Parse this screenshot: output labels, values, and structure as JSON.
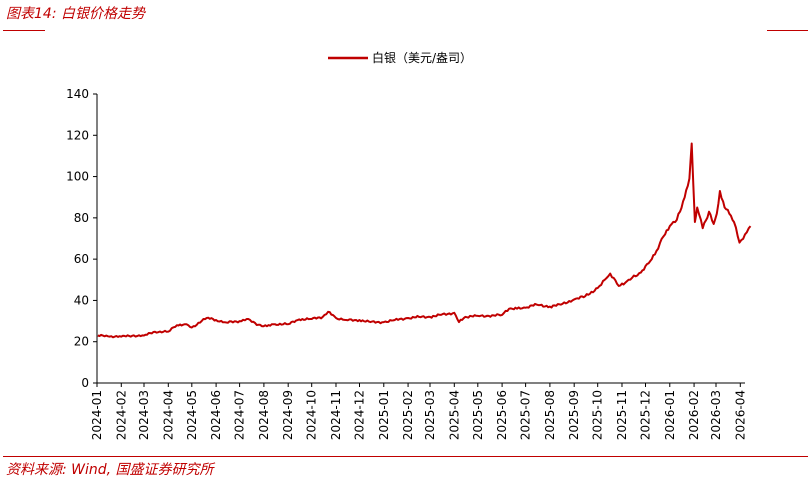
{
  "figure": {
    "title": "图表14:  白银价格走势",
    "source": "资料来源:  Wind,  国盛证券研究所"
  },
  "colors": {
    "accent": "#c00000",
    "series": "#c00000",
    "axis": "#000000"
  },
  "chart_data": {
    "type": "line",
    "title": "",
    "xlabel": "",
    "ylabel": "",
    "ylim": [
      0,
      140
    ],
    "yticks": [
      0,
      20,
      40,
      60,
      80,
      100,
      120,
      140
    ],
    "grid": false,
    "legend_position": "top-center",
    "x_tick_labels": [
      "2024-01",
      "2024-02",
      "2024-03",
      "2024-04",
      "2024-05",
      "2024-06",
      "2024-07",
      "2024-08",
      "2024-09",
      "2024-10",
      "2024-11",
      "2024-12",
      "2025-01",
      "2025-02",
      "2025-03",
      "2025-04",
      "2025-05",
      "2025-06",
      "2025-07",
      "2025-08",
      "2025-09",
      "2025-10",
      "2025-11",
      "2025-12",
      "2026-01",
      "2026-02",
      "2026-03",
      "2026-04"
    ],
    "series": [
      {
        "name": "白银（美元/盎司）",
        "x": [
          "2024-01-02",
          "2024-01-15",
          "2024-02-01",
          "2024-02-15",
          "2024-03-01",
          "2024-03-15",
          "2024-04-01",
          "2024-04-12",
          "2024-04-22",
          "2024-05-01",
          "2024-05-20",
          "2024-06-01",
          "2024-06-14",
          "2024-07-01",
          "2024-07-10",
          "2024-07-25",
          "2024-08-05",
          "2024-08-15",
          "2024-09-01",
          "2024-09-15",
          "2024-10-01",
          "2024-10-15",
          "2024-10-22",
          "2024-11-01",
          "2024-11-14",
          "2024-12-01",
          "2024-12-15",
          "2025-01-01",
          "2025-01-15",
          "2025-02-01",
          "2025-02-15",
          "2025-03-01",
          "2025-03-15",
          "2025-04-01",
          "2025-04-07",
          "2025-04-15",
          "2025-05-01",
          "2025-05-15",
          "2025-06-01",
          "2025-06-10",
          "2025-06-20",
          "2025-07-01",
          "2025-07-15",
          "2025-08-01",
          "2025-08-15",
          "2025-09-01",
          "2025-09-15",
          "2025-10-01",
          "2025-10-10",
          "2025-10-17",
          "2025-10-28",
          "2025-11-05",
          "2025-11-14",
          "2025-11-25",
          "2025-12-05",
          "2025-12-15",
          "2025-12-24",
          "2026-01-01",
          "2026-01-10",
          "2026-01-20",
          "2026-01-26",
          "2026-01-29",
          "2026-02-02",
          "2026-02-05",
          "2026-02-12",
          "2026-02-20",
          "2026-02-26",
          "2026-03-02",
          "2026-03-06",
          "2026-03-12",
          "2026-03-18",
          "2026-03-24",
          "2026-03-31",
          "2026-04-07",
          "2026-04-14"
        ],
        "values": [
          23.0,
          22.6,
          22.5,
          22.9,
          23.0,
          24.8,
          24.9,
          28.0,
          28.5,
          26.9,
          31.5,
          30.5,
          29.3,
          30.0,
          31.0,
          28.2,
          27.5,
          28.5,
          28.5,
          30.8,
          31.0,
          32.0,
          34.5,
          31.5,
          30.5,
          30.5,
          29.5,
          29.5,
          30.5,
          31.5,
          32.0,
          32.0,
          33.0,
          34.0,
          29.5,
          32.0,
          32.5,
          32.5,
          33.0,
          36.0,
          36.0,
          36.5,
          38.0,
          37.0,
          38.0,
          40.5,
          42.0,
          46.0,
          50.0,
          53.0,
          47.0,
          48.5,
          51.0,
          53.5,
          58.0,
          64.0,
          71.0,
          76.0,
          79.0,
          90.0,
          99.0,
          116.0,
          78.0,
          85.0,
          75.0,
          83.0,
          77.0,
          82.0,
          93.0,
          85.0,
          82.0,
          78.0,
          68.0,
          72.0,
          76.0
        ]
      }
    ]
  }
}
